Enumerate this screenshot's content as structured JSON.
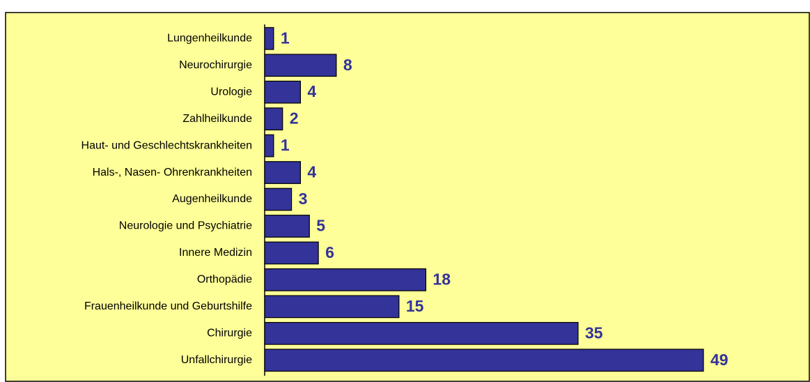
{
  "chart_data": {
    "type": "hbar",
    "categories": [
      "Lungenheilkunde",
      "Neurochirurgie",
      "Urologie",
      "Zahlheilkunde",
      "Haut- und Geschlechtskrankheiten",
      "Hals-, Nasen- Ohrenkrankheiten",
      "Augenheilkunde",
      "Neurologie und Psychiatrie",
      "Innere Medizin",
      "Orthopädie",
      "Frauenheilkunde und Geburtshilfe",
      "Chirurgie",
      "Unfallchirurgie"
    ],
    "values": [
      1,
      8,
      4,
      2,
      1,
      4,
      3,
      5,
      6,
      18,
      15,
      35,
      49
    ],
    "color": "#333399",
    "label_color": "#333399",
    "background": "#ffff99",
    "xlim": [
      0,
      49
    ]
  }
}
